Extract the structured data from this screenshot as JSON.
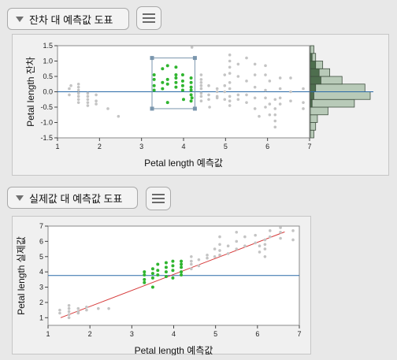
{
  "section1": {
    "title": "잔차 대 예측값 도표"
  },
  "section2": {
    "title": "실제값 대 예측값 도표"
  },
  "colors": {
    "selected": "#2fb52f",
    "unselected": "#c4c4c4",
    "hline": "#2a6aa8",
    "fitline": "#d63a3a",
    "hist": "#b8cab8",
    "hist_sel": "#4e6e4e"
  },
  "chart_data": [
    {
      "type": "scatter",
      "title": "",
      "xlabel": "Petal length 예측값",
      "ylabel": "Petal length 잔차",
      "xlim": [
        1,
        7
      ],
      "ylim": [
        -1.5,
        1.5
      ],
      "xticks": [
        "1",
        "2",
        "3",
        "4",
        "5",
        "6",
        "7"
      ],
      "yticks": [
        "1.5",
        "1.0",
        "0.5",
        "0.0",
        "-0.5",
        "-1.0",
        "-1.5"
      ],
      "hline_y": 0,
      "selection_box": {
        "x": [
          3.25,
          4.27
        ],
        "y": [
          -0.55,
          1.1
        ]
      },
      "unselected_points": [
        [
          1.28,
          0.1
        ],
        [
          1.28,
          -0.1
        ],
        [
          1.32,
          0.2
        ],
        [
          1.5,
          0.25
        ],
        [
          1.5,
          0.15
        ],
        [
          1.5,
          0.05
        ],
        [
          1.5,
          -0.05
        ],
        [
          1.5,
          -0.15
        ],
        [
          1.5,
          -0.25
        ],
        [
          1.5,
          -0.35
        ],
        [
          1.72,
          -0.05
        ],
        [
          1.72,
          -0.15
        ],
        [
          1.72,
          -0.25
        ],
        [
          1.72,
          -0.35
        ],
        [
          1.72,
          -0.45
        ],
        [
          1.92,
          -0.1
        ],
        [
          1.92,
          -0.3
        ],
        [
          1.92,
          -0.4
        ],
        [
          2.2,
          -0.55
        ],
        [
          2.45,
          -0.8
        ],
        [
          4.42,
          0.55
        ],
        [
          4.42,
          0.4
        ],
        [
          4.42,
          0.3
        ],
        [
          4.42,
          0.2
        ],
        [
          4.42,
          0.1
        ],
        [
          4.42,
          -0.05
        ],
        [
          4.42,
          -0.15
        ],
        [
          4.42,
          -0.3
        ],
        [
          4.6,
          0.2
        ],
        [
          4.6,
          -0.1
        ],
        [
          4.6,
          -0.25
        ],
        [
          4.8,
          0.1
        ],
        [
          4.8,
          0.0
        ],
        [
          4.8,
          -0.15
        ],
        [
          4.8,
          -0.2
        ],
        [
          4.98,
          0.55
        ],
        [
          4.98,
          0.2
        ],
        [
          4.98,
          0.0
        ],
        [
          4.98,
          -0.25
        ],
        [
          5.1,
          1.2
        ],
        [
          5.1,
          1.0
        ],
        [
          5.1,
          0.8
        ],
        [
          5.1,
          0.6
        ],
        [
          5.1,
          0.3
        ],
        [
          5.1,
          0.1
        ],
        [
          5.1,
          -0.15
        ],
        [
          5.1,
          -0.3
        ],
        [
          5.1,
          -0.45
        ],
        [
          5.3,
          0.9
        ],
        [
          5.3,
          0.5
        ],
        [
          5.3,
          -0.1
        ],
        [
          5.3,
          -0.25
        ],
        [
          5.5,
          1.1
        ],
        [
          5.5,
          0.35
        ],
        [
          5.5,
          -0.1
        ],
        [
          5.5,
          -0.35
        ],
        [
          5.7,
          0.9
        ],
        [
          5.7,
          0.55
        ],
        [
          5.7,
          0.15
        ],
        [
          5.7,
          -0.2
        ],
        [
          5.7,
          -0.55
        ],
        [
          5.95,
          0.85
        ],
        [
          5.95,
          0.55
        ],
        [
          5.95,
          0.05
        ],
        [
          5.95,
          -0.2
        ],
        [
          5.95,
          -0.5
        ],
        [
          6.05,
          0.35
        ],
        [
          6.05,
          -0.4
        ],
        [
          6.05,
          -0.75
        ],
        [
          6.18,
          -0.25
        ],
        [
          6.18,
          -0.55
        ],
        [
          6.18,
          -0.75
        ],
        [
          6.18,
          -0.95
        ],
        [
          6.18,
          -1.15
        ],
        [
          6.3,
          0.45
        ],
        [
          6.3,
          0.1
        ],
        [
          6.3,
          -0.2
        ],
        [
          6.3,
          -0.4
        ],
        [
          6.55,
          0.45
        ],
        [
          6.55,
          0.0
        ],
        [
          6.55,
          -0.3
        ],
        [
          6.85,
          0.1
        ],
        [
          6.85,
          -0.35
        ],
        [
          6.85,
          -0.55
        ],
        [
          4.2,
          1.45
        ],
        [
          4.62,
          -0.5
        ],
        [
          5.8,
          -0.8
        ]
      ],
      "selected_points": [
        [
          3.3,
          0.55
        ],
        [
          3.3,
          0.4
        ],
        [
          3.3,
          0.2
        ],
        [
          3.3,
          0.05
        ],
        [
          3.5,
          0.75
        ],
        [
          3.5,
          0.3
        ],
        [
          3.5,
          0.1
        ],
        [
          3.62,
          0.4
        ],
        [
          3.62,
          0.25
        ],
        [
          3.62,
          -0.35
        ],
        [
          3.82,
          0.55
        ],
        [
          3.82,
          0.45
        ],
        [
          3.82,
          0.3
        ],
        [
          3.82,
          0.15
        ],
        [
          3.98,
          0.55
        ],
        [
          3.98,
          0.35
        ],
        [
          3.98,
          0.2
        ],
        [
          3.98,
          0.05
        ],
        [
          4.18,
          0.45
        ],
        [
          4.18,
          0.3
        ],
        [
          4.18,
          0.15
        ],
        [
          4.18,
          0.05
        ],
        [
          4.18,
          -0.1
        ],
        [
          4.18,
          -0.3
        ],
        [
          3.62,
          0.85
        ],
        [
          3.82,
          0.8
        ],
        [
          4.0,
          -0.25
        ],
        [
          4.2,
          -0.2
        ]
      ],
      "histogram": {
        "bins": [
          [
            -1.5,
            -1.25
          ],
          [
            -1.25,
            -1.0
          ],
          [
            -1.0,
            -0.75
          ],
          [
            -0.75,
            -0.5
          ],
          [
            -0.5,
            -0.25
          ],
          [
            -0.25,
            0.0
          ],
          [
            0.0,
            0.25
          ],
          [
            0.25,
            0.5
          ],
          [
            0.5,
            0.75
          ],
          [
            0.75,
            1.0
          ],
          [
            1.0,
            1.25
          ],
          [
            1.25,
            1.5
          ]
        ],
        "counts": [
          2,
          3,
          4,
          10,
          25,
          34,
          31,
          18,
          11,
          7,
          3,
          2
        ],
        "selected_counts": [
          0,
          0,
          0,
          0,
          1,
          2,
          3,
          6,
          5,
          3,
          1,
          0
        ]
      }
    },
    {
      "type": "scatter",
      "title": "",
      "xlabel": "Petal length 예측값",
      "ylabel": "Petal length 실제값",
      "xlim": [
        1,
        7
      ],
      "ylim": [
        0.5,
        7
      ],
      "xticks": [
        "1",
        "2",
        "3",
        "4",
        "5",
        "6",
        "7"
      ],
      "yticks": [
        "7",
        "6",
        "5",
        "4",
        "3",
        "2",
        "1"
      ],
      "hline_y": 3.76,
      "fit_line": [
        [
          1.3,
          1.0
        ],
        [
          6.65,
          6.62
        ]
      ],
      "unselected_points": [
        [
          1.28,
          1.3
        ],
        [
          1.28,
          1.5
        ],
        [
          1.5,
          1.2
        ],
        [
          1.5,
          1.4
        ],
        [
          1.5,
          1.6
        ],
        [
          1.5,
          1.8
        ],
        [
          1.5,
          1.0
        ],
        [
          1.72,
          1.4
        ],
        [
          1.72,
          1.6
        ],
        [
          1.72,
          1.3
        ],
        [
          1.92,
          1.5
        ],
        [
          1.92,
          1.7
        ],
        [
          2.2,
          1.6
        ],
        [
          2.45,
          1.6
        ],
        [
          4.42,
          4.5
        ],
        [
          4.42,
          4.7
        ],
        [
          4.42,
          5.0
        ],
        [
          4.42,
          4.2
        ],
        [
          4.6,
          4.8
        ],
        [
          4.6,
          4.4
        ],
        [
          4.8,
          4.9
        ],
        [
          4.8,
          5.1
        ],
        [
          4.98,
          5.0
        ],
        [
          4.98,
          5.5
        ],
        [
          5.1,
          5.1
        ],
        [
          5.1,
          5.4
        ],
        [
          5.1,
          5.8
        ],
        [
          5.1,
          6.3
        ],
        [
          5.3,
          5.2
        ],
        [
          5.3,
          5.7
        ],
        [
          5.5,
          5.5
        ],
        [
          5.5,
          6.0
        ],
        [
          5.5,
          6.6
        ],
        [
          5.7,
          5.7
        ],
        [
          5.7,
          6.3
        ],
        [
          5.95,
          5.9
        ],
        [
          5.95,
          6.4
        ],
        [
          6.05,
          5.7
        ],
        [
          6.05,
          5.3
        ],
        [
          6.18,
          6.1
        ],
        [
          6.18,
          5.8
        ],
        [
          6.18,
          5.5
        ],
        [
          6.18,
          5.0
        ],
        [
          6.3,
          6.7
        ],
        [
          6.3,
          6.3
        ],
        [
          6.55,
          6.9
        ],
        [
          6.55,
          6.6
        ],
        [
          6.55,
          6.2
        ],
        [
          6.85,
          6.1
        ],
        [
          6.85,
          6.7
        ]
      ],
      "selected_points": [
        [
          3.3,
          3.5
        ],
        [
          3.3,
          3.8
        ],
        [
          3.3,
          4.0
        ],
        [
          3.3,
          3.3
        ],
        [
          3.5,
          3.6
        ],
        [
          3.5,
          3.9
        ],
        [
          3.5,
          4.2
        ],
        [
          3.5,
          3.0
        ],
        [
          3.62,
          3.8
        ],
        [
          3.62,
          4.1
        ],
        [
          3.62,
          4.5
        ],
        [
          3.82,
          4.0
        ],
        [
          3.82,
          4.3
        ],
        [
          3.82,
          4.6
        ],
        [
          3.82,
          3.7
        ],
        [
          3.98,
          4.1
        ],
        [
          3.98,
          4.4
        ],
        [
          3.98,
          4.7
        ],
        [
          3.98,
          3.6
        ],
        [
          4.18,
          4.3
        ],
        [
          4.18,
          4.5
        ],
        [
          4.18,
          4.7
        ],
        [
          4.18,
          4.0
        ],
        [
          4.18,
          3.8
        ]
      ]
    }
  ]
}
